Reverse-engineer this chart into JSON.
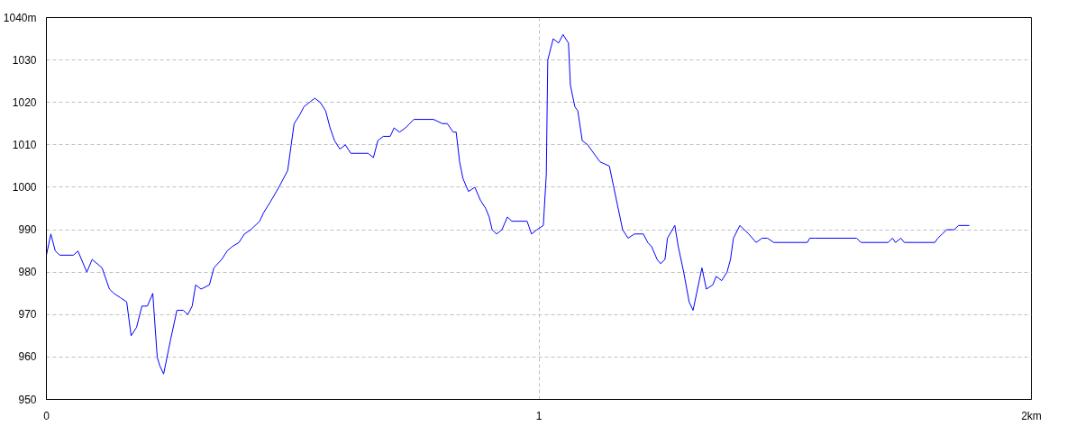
{
  "chart_data": {
    "type": "line",
    "xlim": [
      0,
      2
    ],
    "ylim": [
      950,
      1040
    ],
    "xticks": [
      0,
      1,
      {
        "value": 2,
        "label": "2km"
      }
    ],
    "yticks": [
      950,
      960,
      970,
      980,
      990,
      1000,
      1010,
      1020,
      1030,
      {
        "value": 1040,
        "label": "1040m"
      }
    ],
    "grid": true,
    "line_style": "solid",
    "series": [
      {
        "color": "#0000ff",
        "x": [
          0,
          0.009,
          0.018,
          0.027,
          0.055,
          0.064,
          0.082,
          0.093,
          0.113,
          0.128,
          0.137,
          0.15,
          0.163,
          0.172,
          0.183,
          0.194,
          0.205,
          0.216,
          0.225,
          0.23,
          0.238,
          0.252,
          0.265,
          0.278,
          0.287,
          0.296,
          0.303,
          0.314,
          0.331,
          0.34,
          0.356,
          0.367,
          0.377,
          0.391,
          0.402,
          0.415,
          0.433,
          0.441,
          0.457,
          0.472,
          0.49,
          0.497,
          0.503,
          0.514,
          0.523,
          0.534,
          0.545,
          0.556,
          0.567,
          0.576,
          0.585,
          0.596,
          0.607,
          0.618,
          0.653,
          0.664,
          0.673,
          0.684,
          0.698,
          0.706,
          0.717,
          0.729,
          0.746,
          0.786,
          0.804,
          0.814,
          0.826,
          0.832,
          0.839,
          0.846,
          0.857,
          0.87,
          0.881,
          0.892,
          0.899,
          0.905,
          0.914,
          0.925,
          0.936,
          0.945,
          0.976,
          0.985,
          0.996,
          1.009,
          1.015,
          1.018,
          1.029,
          1.04,
          1.049,
          1.06,
          1.064,
          1.073,
          1.079,
          1.088,
          1.099,
          1.124,
          1.143,
          1.152,
          1.17,
          1.181,
          1.194,
          1.212,
          1.221,
          1.229,
          1.24,
          1.247,
          1.256,
          1.261,
          1.276,
          1.283,
          1.294,
          1.305,
          1.313,
          1.322,
          1.331,
          1.34,
          1.353,
          1.36,
          1.371,
          1.382,
          1.389,
          1.395,
          1.408,
          1.426,
          1.441,
          1.453,
          1.464,
          1.477,
          1.545,
          1.55,
          1.561,
          1.645,
          1.654,
          1.709,
          1.718,
          1.724,
          1.735,
          1.742,
          1.762,
          1.804,
          1.81,
          1.819,
          1.828,
          1.843,
          1.852,
          1.874
        ],
        "values": [
          984,
          989,
          985,
          984,
          984,
          985,
          980,
          983,
          981,
          976,
          975,
          974,
          973,
          965,
          967,
          972,
          972,
          975,
          960,
          958,
          956,
          964,
          971,
          971,
          970,
          972,
          977,
          976,
          977,
          981,
          983,
          985,
          986,
          987,
          989,
          990,
          992,
          994,
          997,
          1000,
          1004,
          1010,
          1015,
          1017,
          1019,
          1020,
          1021,
          1020,
          1018,
          1014,
          1011,
          1009,
          1010,
          1008,
          1008,
          1007,
          1011,
          1012,
          1012,
          1014,
          1013,
          1014,
          1016,
          1016,
          1015,
          1015,
          1013,
          1013,
          1006,
          1002,
          999,
          1000,
          997,
          995,
          993,
          990,
          989,
          990,
          993,
          992,
          992,
          989,
          990,
          991,
          1003,
          1030,
          1035,
          1034,
          1036,
          1034,
          1024,
          1019,
          1018,
          1011,
          1010,
          1006,
          1005,
          1000,
          990,
          988,
          989,
          989,
          987,
          986,
          983,
          982,
          983,
          988,
          991,
          986,
          980,
          973,
          971,
          976,
          981,
          976,
          977,
          979,
          978,
          980,
          983,
          988,
          991,
          989,
          987,
          988,
          988,
          987,
          987,
          988,
          988,
          988,
          987,
          987,
          988,
          987,
          988,
          987,
          987,
          987,
          988,
          989,
          990,
          990,
          991,
          991
        ]
      }
    ]
  }
}
